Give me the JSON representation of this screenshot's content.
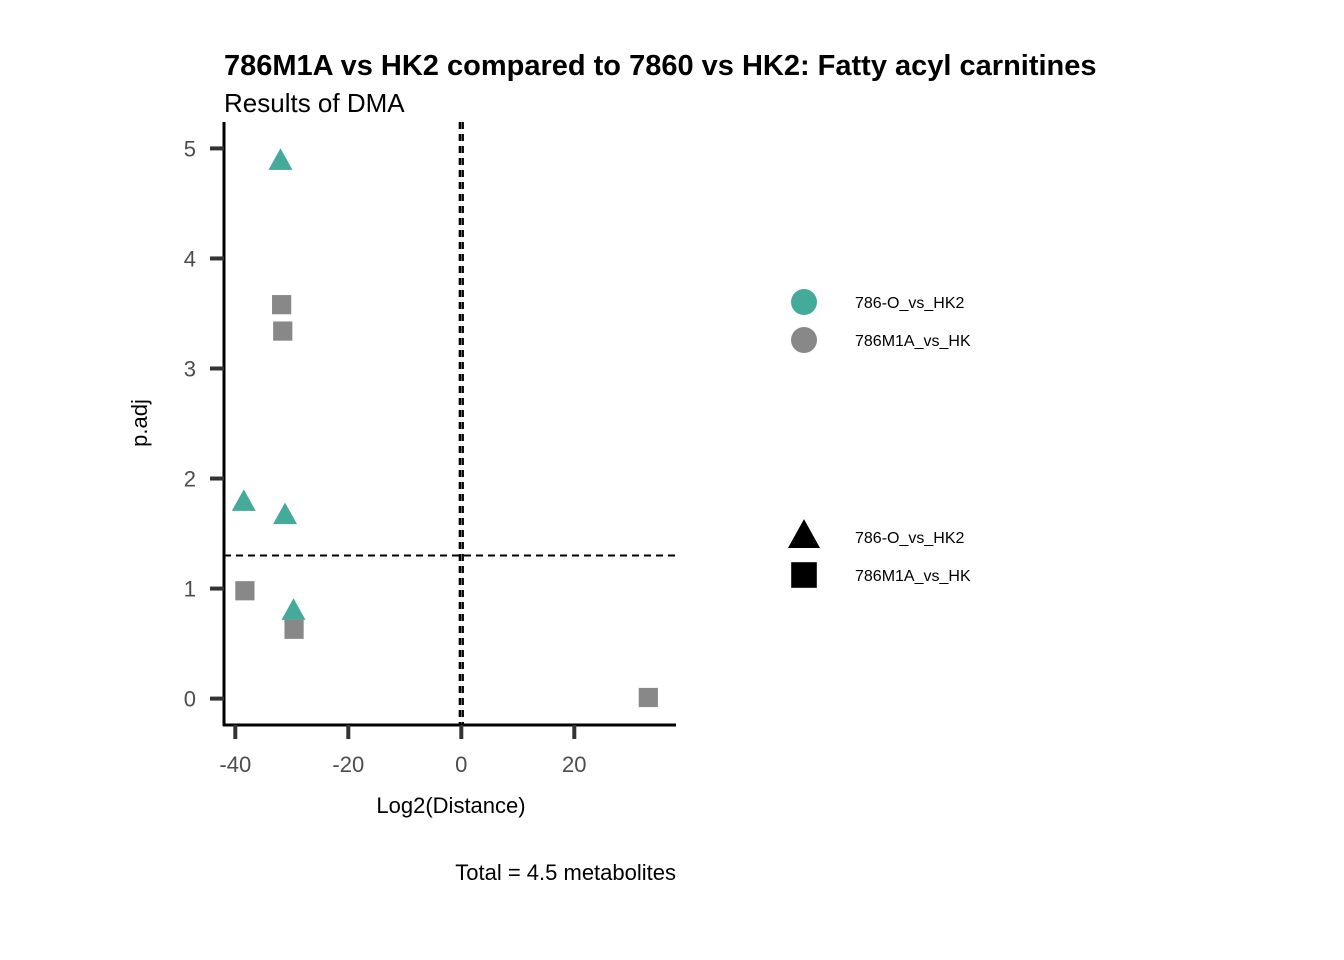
{
  "chart_data": {
    "type": "scatter",
    "title": "786M1A vs HK2 compared to 7860 vs HK2: Fatty acyl carnitines",
    "subtitle": "Results of DMA",
    "xlabel": "Log2(Distance)",
    "ylabel": "p.adj",
    "caption": "Total = 4.5 metabolites",
    "xlim": [
      -42,
      38
    ],
    "ylim": [
      -0.24,
      5.24
    ],
    "x_ticks": [
      -40,
      -20,
      0,
      20
    ],
    "x_tick_labels": [
      "-40",
      "-20",
      "0",
      "20"
    ],
    "y_ticks": [
      0,
      1,
      2,
      3,
      4,
      5
    ],
    "y_tick_labels": [
      "0",
      "1",
      "2",
      "3",
      "4",
      "5"
    ],
    "reference_lines": {
      "vertical": [
        -0.25,
        0.25
      ],
      "horizontal": [
        1.3
      ]
    },
    "grid": false,
    "colors": {
      "786-O_vs_HK2": "#44aa99",
      "786M1A_vs_HK": "#888888"
    },
    "series": [
      {
        "name": "786-O_vs_HK2",
        "shape": "triangle",
        "x": [
          -32,
          -38.5,
          -31.2,
          -29.7
        ],
        "y": [
          4.88,
          1.78,
          1.66,
          0.79
        ]
      },
      {
        "name": "786M1A_vs_HK",
        "shape": "square",
        "x": [
          -31.8,
          -31.6,
          -38.3,
          -29.6,
          33.1
        ],
        "y": [
          3.58,
          3.34,
          0.98,
          0.63,
          0.01
        ]
      }
    ],
    "legend": {
      "placement": "right",
      "color_legend": {
        "items": [
          {
            "label": "786-O_vs_HK2",
            "color": "#44aa99"
          },
          {
            "label": "786M1A_vs_HK",
            "color": "#888888"
          }
        ]
      },
      "shape_legend": {
        "items": [
          {
            "label": "786-O_vs_HK2",
            "shape": "triangle"
          },
          {
            "label": "786M1A_vs_HK",
            "shape": "square"
          }
        ]
      }
    }
  }
}
